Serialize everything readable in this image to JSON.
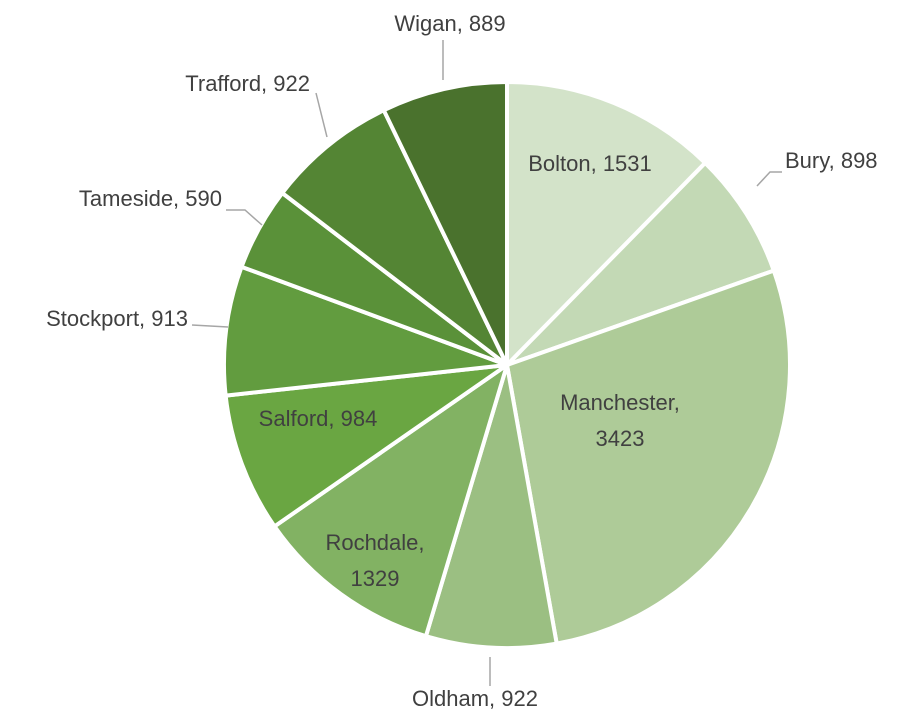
{
  "chart_data": {
    "type": "pie",
    "values": [
      1531,
      898,
      3423,
      922,
      1329,
      984,
      913,
      590,
      922,
      889
    ],
    "value_labels": [
      "Bolton, 1531",
      "Bury, 898",
      "Manchester, 3423",
      "Oldham, 922",
      "Rochdale, 1329",
      "Salford, 984",
      "Stockport, 913",
      "Tameside, 590",
      "Trafford, 922",
      "Wigan, 889"
    ],
    "colors": [
      "#d3e3c9",
      "#c3d9b5",
      "#aecb98",
      "#9bbf82",
      "#82b263",
      "#6aa642",
      "#629c3f",
      "#5a9139",
      "#548534",
      "#4a722d"
    ]
  }
}
